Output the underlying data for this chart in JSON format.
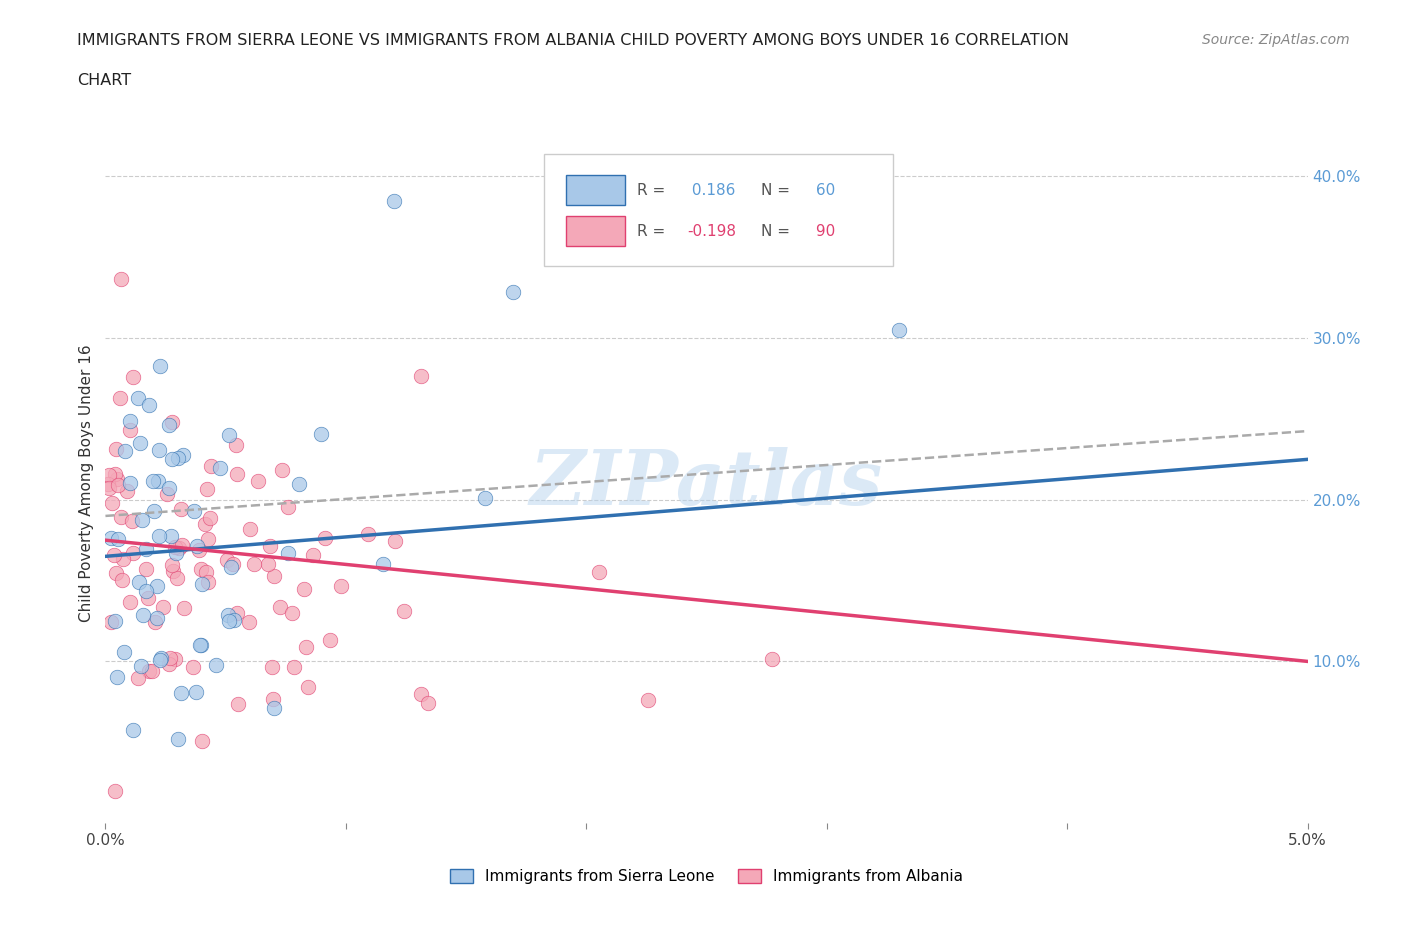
{
  "title_line1": "IMMIGRANTS FROM SIERRA LEONE VS IMMIGRANTS FROM ALBANIA CHILD POVERTY AMONG BOYS UNDER 16 CORRELATION",
  "title_line2": "CHART",
  "source": "Source: ZipAtlas.com",
  "ylabel": "Child Poverty Among Boys Under 16",
  "r_sierra": 0.186,
  "n_sierra": 60,
  "r_albania": -0.198,
  "n_albania": 90,
  "color_sierra": "#a8c8e8",
  "color_albania": "#f4a8b8",
  "color_sierra_line": "#3070b0",
  "color_albania_line": "#e04070",
  "color_dashed": "#aaaaaa",
  "xmin": 0.0,
  "xmax": 0.05,
  "ymin": 0.0,
  "ymax": 0.42,
  "right_yticks": [
    0.1,
    0.2,
    0.3,
    0.4
  ],
  "right_ytick_labels": [
    "10.0%",
    "20.0%",
    "30.0%",
    "40.0%"
  ],
  "bottom_xtick_labels": [
    "0.0%",
    "",
    "",
    "",
    "",
    "5.0%"
  ],
  "grid_color": "#cccccc",
  "background_color": "#ffffff",
  "sierra_intercept": 0.165,
  "sierra_slope": 1.2,
  "albania_intercept": 0.175,
  "albania_slope": -1.5,
  "dashed_intercept": 0.19,
  "dashed_slope": 1.05,
  "watermark": "ZIPatlas",
  "legend_label_sierra": "Immigrants from Sierra Leone",
  "legend_label_albania": "Immigrants from Albania"
}
